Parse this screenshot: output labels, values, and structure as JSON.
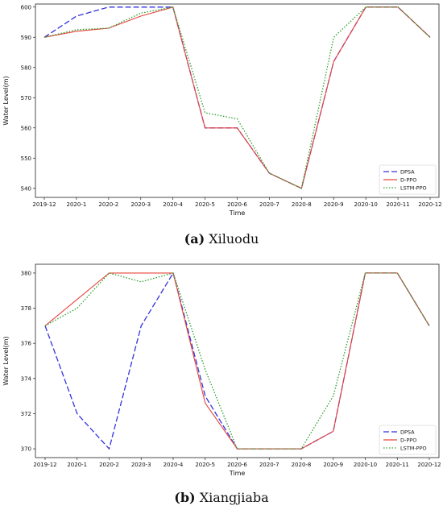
{
  "chart_data": [
    {
      "type": "line",
      "caption_letter": "(a)",
      "caption_name": "Xiluodu",
      "xlabel": "Time",
      "ylabel": "Water Level(m)",
      "categories": [
        "2019-12",
        "2020-1",
        "2020-2",
        "2020-3",
        "2020-4",
        "2020-5",
        "2020-6",
        "2020-7",
        "2020-8",
        "2020-9",
        "2020-10",
        "2020-11",
        "2020-12"
      ],
      "yticks": [
        540,
        550,
        560,
        570,
        580,
        590,
        600
      ],
      "ylim": [
        537,
        601
      ],
      "legend_position": "lower right",
      "grid": false,
      "series": [
        {
          "name": "DPSA",
          "color": "#3333dd",
          "style": "dashed",
          "values": [
            590,
            597,
            600,
            600,
            600,
            560,
            560,
            545,
            540,
            582,
            600,
            600,
            590
          ]
        },
        {
          "name": "D-PPO",
          "color": "#e8433a",
          "style": "solid",
          "values": [
            590,
            592,
            593,
            597,
            600,
            560,
            560,
            545,
            540,
            582,
            600,
            600,
            590
          ]
        },
        {
          "name": "LSTM-PPO",
          "color": "#2ca02c",
          "style": "dotted",
          "values": [
            590,
            592.5,
            593,
            598,
            600,
            565,
            563,
            545,
            540,
            590,
            600,
            600,
            590
          ]
        }
      ]
    },
    {
      "type": "line",
      "caption_letter": "(b)",
      "caption_name": "Xiangjiaba",
      "xlabel": "Time",
      "ylabel": "Water Level(m)",
      "categories": [
        "2019-12",
        "2020-1",
        "2020-2",
        "2020-3",
        "2020-4",
        "2020-5",
        "2020-6",
        "2020-7",
        "2020-8",
        "2020-9",
        "2020-10",
        "2020-11",
        "2020-12"
      ],
      "yticks": [
        370,
        372,
        374,
        376,
        378,
        380
      ],
      "ylim": [
        369.5,
        380.5
      ],
      "legend_position": "lower right",
      "grid": false,
      "series": [
        {
          "name": "DPSA",
          "color": "#3333dd",
          "style": "dashed",
          "values": [
            377,
            372,
            370,
            377,
            380,
            373,
            370,
            370,
            370,
            371,
            380,
            380,
            377
          ]
        },
        {
          "name": "D-PPO",
          "color": "#e8433a",
          "style": "solid",
          "values": [
            377,
            378.5,
            380,
            380,
            380,
            372.6,
            370,
            370,
            370,
            371,
            380,
            380,
            377
          ]
        },
        {
          "name": "LSTM-PPO",
          "color": "#2ca02c",
          "style": "dotted",
          "values": [
            377,
            378,
            380,
            379.5,
            380,
            374.5,
            370,
            370,
            370,
            373,
            380,
            380,
            377
          ]
        }
      ]
    }
  ]
}
